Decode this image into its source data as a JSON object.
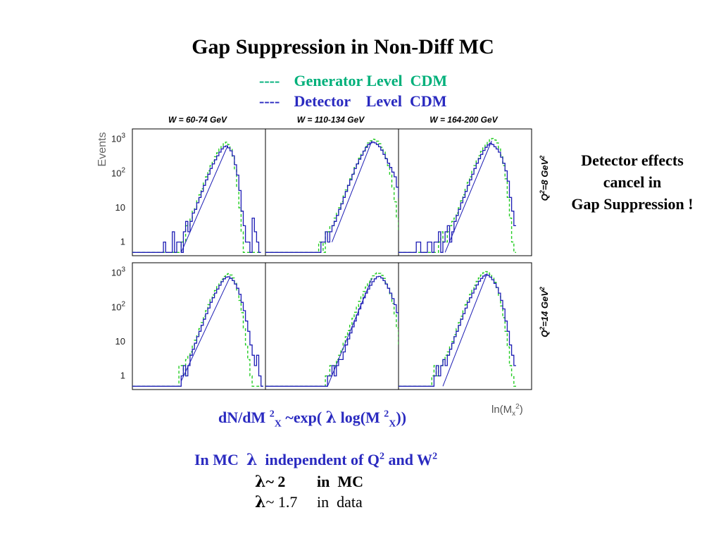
{
  "title": "Gap Suppression in Non-Diff MC",
  "legend": [
    {
      "marker": "----",
      "label": "Generator Level  CDM",
      "color": "#00c080",
      "style": "dashed"
    },
    {
      "marker": "----",
      "label": "Detector    Level  CDM",
      "color": "#1c1cb4",
      "style": "solid"
    }
  ],
  "note": {
    "line1": "Detector effects",
    "line2": "cancel in",
    "line3": "Gap Suppression !"
  },
  "formula": {
    "p1": "dN/dM ",
    "s1": "2",
    "b1": "X",
    "p2": " ~exp( ",
    "lam": "λ",
    "p3": " log(M ",
    "s2": "2",
    "b2": "X",
    "p4": "))"
  },
  "mc_line": {
    "p1": "In MC  ",
    "lam": "λ",
    "p2": "  independent of Q",
    "s1": "2",
    "p3": " and W",
    "s2": "2"
  },
  "lambda_mc": {
    "lam": "λ",
    "value": "~ 2",
    "where": "in  MC"
  },
  "lambda_data": {
    "lam": "λ",
    "value": "~ 1.7",
    "where": "in  data"
  },
  "colors": {
    "generator": "#22cc22",
    "detector": "#1c1cb4",
    "fit": "#1c1cb4",
    "text_blue": "#2a2ac0",
    "text_green": "#00b07a"
  },
  "chart_data": {
    "type": "line",
    "layout": "2x3 histogram grid",
    "ylabel": "Events",
    "xlabel": "ln(M",
    "xlabel_sub": "x",
    "xlabel_sup": "2",
    "yscale": "log",
    "yticks": [
      "1",
      "10",
      "10",
      "10"
    ],
    "yticks_sup": [
      "",
      "",
      "2",
      "3"
    ],
    "ytick_values": [
      1,
      10,
      100,
      1000
    ],
    "ylim": [
      0.4,
      2000
    ],
    "columns": [
      "W = 60-74 GeV",
      "W = 110-134 GeV",
      "W = 164-200 GeV"
    ],
    "rows": [
      {
        "label": "Q",
        "sup": "2",
        "rest": "=8 GeV",
        "sup2": "2"
      },
      {
        "label": "Q",
        "sup": "2",
        "rest": "=14 GeV",
        "sup2": "2"
      }
    ],
    "series_names": [
      "Generator Level  CDM",
      "Detector    Level  CDM"
    ],
    "panels": [
      {
        "row": 0,
        "col": 0,
        "detector": [
          0.5,
          0.5,
          0.5,
          0.5,
          0.5,
          0.5,
          0.5,
          0.5,
          0.5,
          0.5,
          0.5,
          0.5,
          0.5,
          0.5,
          1,
          0.5,
          0.5,
          0.5,
          2,
          0.5,
          1,
          1,
          0.5,
          2,
          4,
          2,
          4,
          7,
          9,
          14,
          20,
          30,
          45,
          65,
          95,
          140,
          190,
          250,
          330,
          420,
          520,
          600,
          640,
          560,
          460,
          330,
          180,
          90,
          32,
          8,
          3,
          1,
          1,
          0.5,
          5,
          2,
          1,
          0.5
        ],
        "generator": [
          0.5,
          0.5,
          0.5,
          0.5,
          0.5,
          0.5,
          0.5,
          0.5,
          0.5,
          0.5,
          0.5,
          0.5,
          0.5,
          0.5,
          0.5,
          0.5,
          0.5,
          0.5,
          0.5,
          0.5,
          0.5,
          0.5,
          1,
          1,
          3,
          3,
          5,
          8,
          10,
          16,
          24,
          36,
          55,
          80,
          120,
          170,
          230,
          310,
          400,
          520,
          650,
          780,
          820,
          700,
          520,
          300,
          130,
          40,
          10,
          2,
          0.5,
          0.5,
          0.5,
          0.5,
          0.5,
          0.5,
          0.5,
          0.5
        ],
        "fit": {
          "x": [
            22,
            43
          ],
          "y": [
            0.5,
            650
          ]
        }
      },
      {
        "row": 0,
        "col": 1,
        "detector": [
          0.5,
          0.5,
          0.5,
          0.5,
          0.5,
          0.5,
          0.5,
          0.5,
          0.5,
          0.5,
          0.5,
          0.5,
          0.5,
          0.5,
          0.5,
          0.5,
          0.5,
          0.5,
          0.5,
          0.5,
          0.5,
          0.5,
          0.5,
          0.5,
          0.5,
          1,
          1,
          2,
          1,
          2,
          3,
          4,
          6,
          9,
          13,
          20,
          30,
          45,
          65,
          95,
          140,
          190,
          260,
          340,
          450,
          580,
          700,
          780,
          820,
          780,
          700,
          600,
          480,
          360,
          270,
          200,
          150,
          110,
          80,
          40,
          20,
          10,
          5,
          3,
          2,
          1,
          0.5,
          0.5
        ],
        "generator": [
          0.5,
          0.5,
          0.5,
          0.5,
          0.5,
          0.5,
          0.5,
          0.5,
          0.5,
          0.5,
          0.5,
          0.5,
          0.5,
          0.5,
          0.5,
          0.5,
          0.5,
          0.5,
          0.5,
          0.5,
          0.5,
          0.5,
          0.5,
          0.5,
          1,
          1,
          0.5,
          2,
          2,
          3,
          3,
          5,
          7,
          10,
          15,
          22,
          33,
          48,
          70,
          100,
          150,
          200,
          280,
          360,
          480,
          620,
          780,
          900,
          1000,
          980,
          880,
          740,
          580,
          420,
          280,
          170,
          90,
          40,
          15,
          5,
          2,
          1,
          0.5,
          0.5,
          0.5,
          0.5,
          0.5,
          0.5
        ],
        "fit": {
          "x": [
            30,
            48
          ],
          "y": [
            1,
            900
          ]
        }
      },
      {
        "row": 0,
        "col": 2,
        "detector": [
          0.5,
          0.5,
          0.5,
          0.5,
          0.5,
          0.5,
          0.5,
          0.5,
          1,
          1,
          0.5,
          0.5,
          0.5,
          1,
          1,
          0.5,
          1,
          1,
          2,
          0.5,
          1,
          2,
          3,
          1,
          2,
          4,
          6,
          9,
          14,
          20,
          30,
          45,
          65,
          95,
          140,
          200,
          270,
          360,
          470,
          580,
          680,
          760,
          700,
          600,
          520,
          420,
          300,
          200,
          120,
          60,
          20,
          8,
          3
        ],
        "generator": [
          0.5,
          0.5,
          0.5,
          0.5,
          0.5,
          0.5,
          0.5,
          0.5,
          0.5,
          0.5,
          0.5,
          0.5,
          0.5,
          0.5,
          0.5,
          0.5,
          0.5,
          0.5,
          1,
          2,
          1,
          1,
          2,
          3,
          4,
          5,
          7,
          10,
          16,
          24,
          36,
          55,
          80,
          120,
          170,
          240,
          330,
          440,
          560,
          700,
          860,
          1000,
          1050,
          950,
          780,
          560,
          340,
          170,
          70,
          20,
          5,
          1,
          0.5
        ],
        "fit": {
          "x": [
            21,
            42
          ],
          "y": [
            0.5,
            900
          ]
        }
      },
      {
        "row": 1,
        "col": 0,
        "detector": [
          0.5,
          0.5,
          0.5,
          0.5,
          0.5,
          0.5,
          0.5,
          0.5,
          0.5,
          0.5,
          0.5,
          0.5,
          0.5,
          0.5,
          0.5,
          0.5,
          0.5,
          0.5,
          0.5,
          0.5,
          0.5,
          0.5,
          1,
          2,
          1,
          2,
          4,
          6,
          9,
          14,
          20,
          30,
          45,
          65,
          95,
          140,
          190,
          260,
          340,
          440,
          560,
          680,
          760,
          780,
          700,
          600,
          480,
          360,
          240,
          140,
          80,
          40,
          20,
          8,
          4,
          2,
          4,
          1,
          0.5
        ],
        "generator": [
          0.5,
          0.5,
          0.5,
          0.5,
          0.5,
          0.5,
          0.5,
          0.5,
          0.5,
          0.5,
          0.5,
          0.5,
          0.5,
          0.5,
          0.5,
          0.5,
          0.5,
          0.5,
          0.5,
          0.5,
          0.5,
          2,
          2,
          1,
          3,
          4,
          5,
          8,
          11,
          16,
          24,
          36,
          55,
          80,
          120,
          170,
          230,
          310,
          400,
          520,
          660,
          800,
          920,
          960,
          880,
          720,
          520,
          320,
          160,
          70,
          25,
          8,
          3,
          1,
          0.5,
          0.5,
          0.5,
          0.5,
          0.5
        ],
        "fit": {
          "x": [
            22,
            44
          ],
          "y": [
            0.7,
            760
          ]
        }
      },
      {
        "row": 1,
        "col": 1,
        "detector": [
          0.5,
          0.5,
          0.5,
          0.5,
          0.5,
          0.5,
          0.5,
          0.5,
          0.5,
          0.5,
          0.5,
          0.5,
          0.5,
          0.5,
          0.5,
          0.5,
          0.5,
          0.5,
          0.5,
          0.5,
          0.5,
          0.5,
          0.5,
          0.5,
          0.5,
          0.5,
          0.5,
          0.5,
          1,
          1,
          2,
          1,
          2,
          3,
          3,
          5,
          8,
          12,
          18,
          27,
          40,
          60,
          90,
          130,
          190,
          260,
          340,
          440,
          560,
          680,
          780,
          800,
          720,
          600,
          480,
          360,
          260,
          180,
          120,
          70,
          40,
          20,
          10,
          4,
          2,
          1,
          0.5,
          0.5
        ],
        "generator": [
          0.5,
          0.5,
          0.5,
          0.5,
          0.5,
          0.5,
          0.5,
          0.5,
          0.5,
          0.5,
          0.5,
          0.5,
          0.5,
          0.5,
          0.5,
          0.5,
          0.5,
          0.5,
          0.5,
          0.5,
          0.5,
          0.5,
          0.5,
          0.5,
          0.5,
          0.5,
          0.5,
          1,
          1,
          2,
          2,
          2,
          3,
          4,
          6,
          9,
          14,
          21,
          32,
          48,
          72,
          105,
          150,
          210,
          290,
          390,
          520,
          670,
          830,
          950,
          1020,
          980,
          860,
          700,
          520,
          360,
          230,
          130,
          60,
          25,
          8,
          3,
          1,
          0.5,
          0.5,
          0.5,
          0.5,
          0.5
        ],
        "fit": {
          "x": [
            28,
            48
          ],
          "y": [
            0.5,
            700
          ]
        }
      },
      {
        "row": 1,
        "col": 2,
        "detector": [
          0.5,
          0.5,
          0.5,
          0.5,
          0.5,
          0.5,
          0.5,
          0.5,
          0.5,
          0.5,
          0.5,
          0.5,
          0.5,
          0.5,
          0.5,
          0.5,
          1,
          2,
          1,
          2,
          3,
          2,
          4,
          6,
          9,
          14,
          20,
          30,
          45,
          65,
          95,
          140,
          190,
          260,
          340,
          450,
          580,
          700,
          820,
          900,
          860,
          760,
          640,
          500,
          380,
          260,
          160,
          90,
          40,
          20,
          8,
          4,
          2
        ],
        "generator": [
          0.5,
          0.5,
          0.5,
          0.5,
          0.5,
          0.5,
          0.5,
          0.5,
          0.5,
          0.5,
          0.5,
          0.5,
          0.5,
          0.5,
          0.5,
          1,
          2,
          1,
          2,
          2,
          3,
          4,
          5,
          7,
          10,
          16,
          24,
          36,
          55,
          80,
          120,
          170,
          240,
          330,
          440,
          570,
          720,
          880,
          1020,
          1100,
          1060,
          920,
          740,
          540,
          360,
          210,
          110,
          50,
          20,
          7,
          2,
          1,
          0.5
        ],
        "fit": {
          "x": [
            20,
            40
          ],
          "y": [
            0.5,
            1000
          ]
        }
      }
    ]
  }
}
